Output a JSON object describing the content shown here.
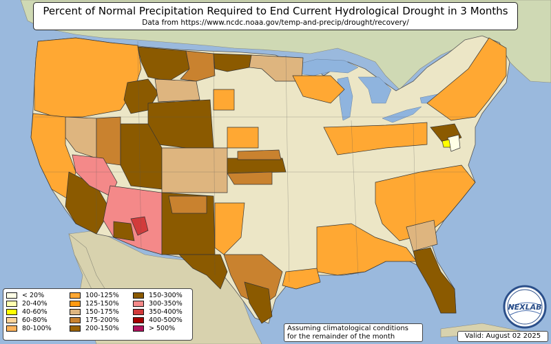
{
  "title": "Percent of Normal Precipitation Required to End Current Hydrological Drought in 3 Months",
  "subtitle": "Data from https://www.ncdc.noaa.gov/temp-and-precip/drought/recovery/",
  "legend": [
    {
      "label": "< 20%",
      "color": "#ffffe6"
    },
    {
      "label": "20-40%",
      "color": "#ffffb0"
    },
    {
      "label": "40-60%",
      "color": "#ffff00"
    },
    {
      "label": "60-80%",
      "color": "#fcd49a"
    },
    {
      "label": "80-100%",
      "color": "#fdb45c"
    },
    {
      "label": "100-125%",
      "color": "#ffa833"
    },
    {
      "label": "125-150%",
      "color": "#ff9a10"
    },
    {
      "label": "150-175%",
      "color": "#deb57f"
    },
    {
      "label": "175-200%",
      "color": "#c9822f"
    },
    {
      "label": "200-150%",
      "color": "#9b6304"
    },
    {
      "label": "150-300%",
      "color": "#8b5a00"
    },
    {
      "label": "300-350%",
      "color": "#f48989"
    },
    {
      "label": "350-400%",
      "color": "#d23b3b"
    },
    {
      "label": "400-500%",
      "color": "#a50000"
    },
    {
      "label": "> 500%",
      "color": "#b0135e"
    }
  ],
  "note": {
    "line1": "Assuming climatological conditions",
    "line2": "for the remainder of the month"
  },
  "valid": "Valid: August 02 2025",
  "logo_text": "NEXLAB",
  "colors": {
    "ocean": "#9ab9dd",
    "land": "#ece6c6",
    "mexico": "#d8d2ae",
    "canada": "#cfd9b4",
    "lakes": "#8fb4de"
  }
}
